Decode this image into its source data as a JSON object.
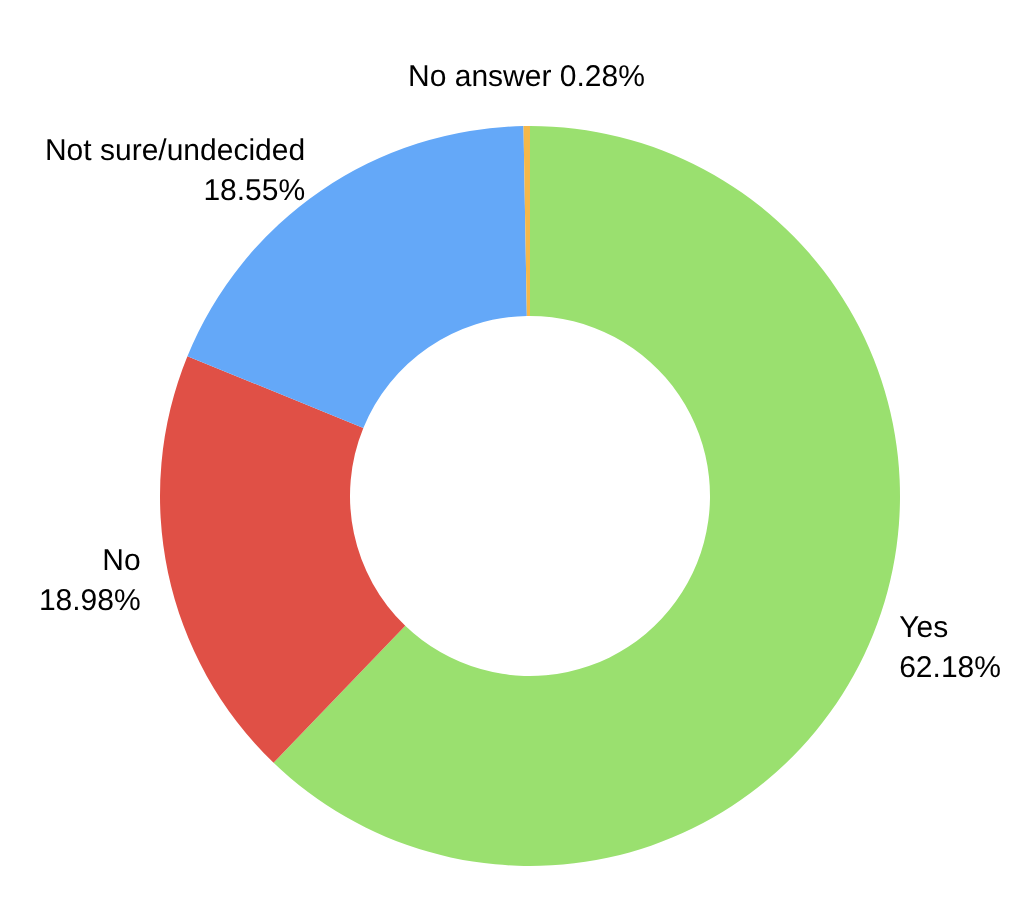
{
  "chart_data": {
    "type": "donut",
    "categories": [
      "Yes",
      "No",
      "Not sure/undecided",
      "No answer"
    ],
    "values": [
      62.18,
      18.98,
      18.55,
      0.28
    ],
    "colors": [
      "#9ae06f",
      "#e05046",
      "#64a8f8",
      "#f5b84a"
    ],
    "value_labels": [
      "62.18%",
      "18.98%",
      "18.55%",
      "0.28%"
    ],
    "legend": false
  }
}
